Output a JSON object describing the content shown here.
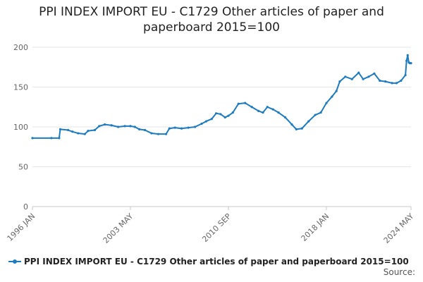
{
  "chart_data": {
    "type": "line",
    "title": "PPI INDEX IMPORT EU - C1729 Other articles of paper and paperboard 2015=100",
    "title_lines": [
      "PPI INDEX IMPORT EU - C1729 Other articles of paper and",
      "paperboard 2015=100"
    ],
    "xlabel": "",
    "ylabel": "",
    "ylim": [
      0,
      200
    ],
    "yticks": [
      0,
      50,
      100,
      150,
      200
    ],
    "xlim": [
      "1996-01",
      "2024-05"
    ],
    "xticks": [
      {
        "date": "1996-01",
        "label": "1996 JAN"
      },
      {
        "date": "2003-05",
        "label": "2003 MAY"
      },
      {
        "date": "2010-09",
        "label": "2010 SEP"
      },
      {
        "date": "2018-01",
        "label": "2018 JAN"
      },
      {
        "date": "2024-05",
        "label": "2024 MAY"
      }
    ],
    "grid": true,
    "legend": "bottom",
    "series": [
      {
        "name": "PPI INDEX IMPORT EU - C1729 Other articles of paper and paperboard 2015=100",
        "color": "#1f7bbf",
        "points": [
          [
            "1996-01",
            86
          ],
          [
            "1997-06",
            86
          ],
          [
            "1998-01",
            86
          ],
          [
            "1998-02",
            97
          ],
          [
            "1998-09",
            96
          ],
          [
            "1999-01",
            94
          ],
          [
            "1999-06",
            92
          ],
          [
            "1999-12",
            91
          ],
          [
            "2000-03",
            95
          ],
          [
            "2000-09",
            96
          ],
          [
            "2001-01",
            101
          ],
          [
            "2001-06",
            103
          ],
          [
            "2001-12",
            102
          ],
          [
            "2002-06",
            100
          ],
          [
            "2002-12",
            101
          ],
          [
            "2003-05",
            101
          ],
          [
            "2003-09",
            100
          ],
          [
            "2004-01",
            97
          ],
          [
            "2004-06",
            96
          ],
          [
            "2004-12",
            92
          ],
          [
            "2005-06",
            91
          ],
          [
            "2006-01",
            91
          ],
          [
            "2006-04",
            98
          ],
          [
            "2006-09",
            99
          ],
          [
            "2007-03",
            98
          ],
          [
            "2007-09",
            99
          ],
          [
            "2008-03",
            100
          ],
          [
            "2008-09",
            104
          ],
          [
            "2009-01",
            107
          ],
          [
            "2009-06",
            110
          ],
          [
            "2009-10",
            117
          ],
          [
            "2010-02",
            116
          ],
          [
            "2010-06",
            112
          ],
          [
            "2010-09",
            114
          ],
          [
            "2011-01",
            118
          ],
          [
            "2011-06",
            129
          ],
          [
            "2011-12",
            130
          ],
          [
            "2012-06",
            125
          ],
          [
            "2012-12",
            120
          ],
          [
            "2013-04",
            118
          ],
          [
            "2013-08",
            125
          ],
          [
            "2014-01",
            122
          ],
          [
            "2014-06",
            118
          ],
          [
            "2014-12",
            112
          ],
          [
            "2015-06",
            103
          ],
          [
            "2015-10",
            97
          ],
          [
            "2016-03",
            98
          ],
          [
            "2016-09",
            107
          ],
          [
            "2017-03",
            115
          ],
          [
            "2017-08",
            118
          ],
          [
            "2018-01",
            130
          ],
          [
            "2018-06",
            138
          ],
          [
            "2018-10",
            145
          ],
          [
            "2019-01",
            157
          ],
          [
            "2019-06",
            163
          ],
          [
            "2019-12",
            160
          ],
          [
            "2020-06",
            168
          ],
          [
            "2020-10",
            160
          ],
          [
            "2021-03",
            163
          ],
          [
            "2021-08",
            167
          ],
          [
            "2022-01",
            158
          ],
          [
            "2022-06",
            157
          ],
          [
            "2022-12",
            155
          ],
          [
            "2023-04",
            155
          ],
          [
            "2023-08",
            158
          ],
          [
            "2023-12",
            165
          ],
          [
            "2024-01",
            183
          ],
          [
            "2024-02",
            190
          ],
          [
            "2024-03",
            181
          ],
          [
            "2024-04",
            180
          ],
          [
            "2024-05",
            180
          ]
        ]
      }
    ]
  },
  "source": {
    "label": "Source:"
  }
}
